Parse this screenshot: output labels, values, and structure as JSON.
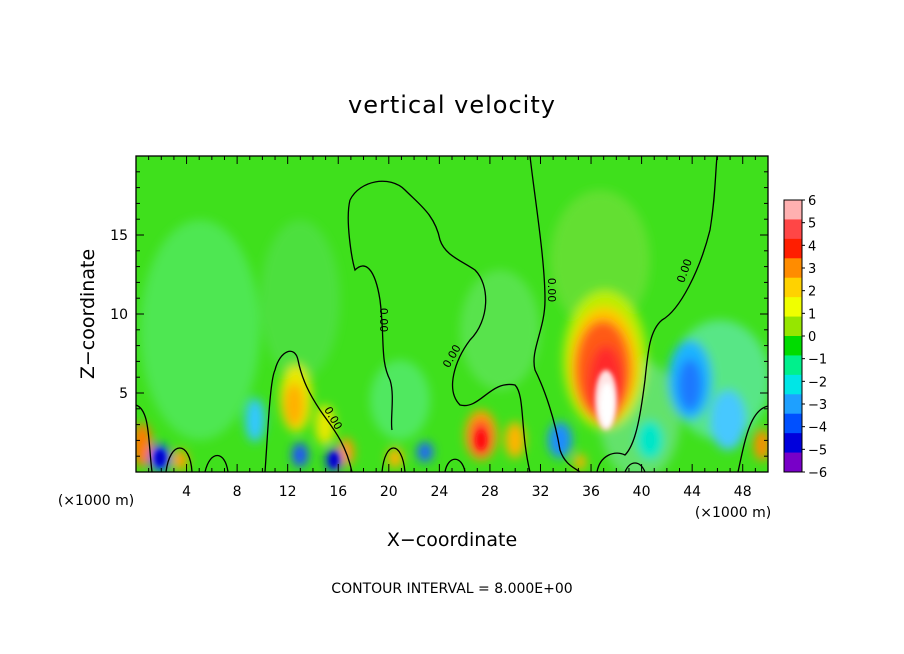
{
  "chart_data": {
    "type": "heatmap",
    "title": "vertical velocity",
    "xlabel": "X−coordinate",
    "ylabel": "Z−coordinate",
    "x_unit_left": "(×1000 m)",
    "x_unit_right": "(×1000 m)",
    "xlim": [
      0,
      50
    ],
    "ylim": [
      0,
      20
    ],
    "x_ticks": [
      "4",
      "8",
      "12",
      "16",
      "20",
      "24",
      "28",
      "32",
      "36",
      "40",
      "44",
      "48"
    ],
    "y_ticks": [
      "5",
      "10",
      "15"
    ],
    "footer": "CONTOUR INTERVAL = 8.000E+00",
    "contour_labels": [
      "0.00",
      "0.00",
      "0.00",
      "0.00",
      "0.00"
    ],
    "colorbar": {
      "levels": [
        "6",
        "5",
        "4",
        "3",
        "2",
        "1",
        "0",
        "−1",
        "−2",
        "−3",
        "−4",
        "−5",
        "−6"
      ],
      "colors": [
        "#ffb0b0",
        "#ff4646",
        "#ff1e00",
        "#ff8c00",
        "#ffd200",
        "#f0ff00",
        "#96e600",
        "#00dc00",
        "#00f08c",
        "#00e6e6",
        "#1ea0ff",
        "#0050ff",
        "#0000dc",
        "#7800c8"
      ]
    },
    "features": [
      {
        "kind": "updraft",
        "x": 37.5,
        "z": 4.5,
        "w": 6.0
      },
      {
        "kind": "updraft",
        "x": 27.5,
        "z": 1.8,
        "w": 4.0
      },
      {
        "kind": "updraft",
        "x": 13.5,
        "z": 3.8,
        "w": 2.5
      },
      {
        "kind": "downdraft",
        "x": 44.5,
        "z": 4.0,
        "w": -3.0
      },
      {
        "kind": "downdraft",
        "x": 2.0,
        "z": 1.0,
        "w": -4.5
      },
      {
        "kind": "downdraft",
        "x": 15.5,
        "z": 0.8,
        "w": -4.0
      }
    ]
  }
}
